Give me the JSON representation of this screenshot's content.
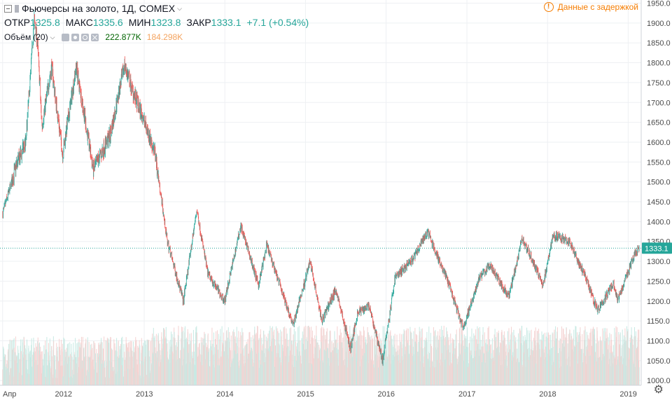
{
  "header": {
    "symbol_title": "Фьючерсы на золото, 1Д, COMEX",
    "ohlc": {
      "open_label": "ОТКР",
      "open_value": "1325.8",
      "high_label": "МАКС",
      "high_value": "1335.6",
      "low_label": "МИН",
      "low_value": "1323.8",
      "close_label": "ЗАКР",
      "close_value": "1333.1",
      "change": "+7.1 (+0.54%)"
    },
    "volume": {
      "name": "Объём",
      "period": "(20)",
      "value1": "222.877K",
      "value2": "184.298K"
    },
    "delay_notice": "Данные с задержкой"
  },
  "colors": {
    "up": "#26a69a",
    "down": "#ef5350",
    "price_line": "#26a69a",
    "volume_up": "#c7e9e3",
    "volume_down": "#f4d2d1",
    "vol_value1": "#006400",
    "vol_value2": "#f4a460",
    "warning": "#f57c00"
  },
  "chart_data": {
    "type": "candlestick",
    "title": "Фьючерсы на золото, 1Д, COMEX",
    "x_ticks": [
      "Апр",
      "2012",
      "2013",
      "2014",
      "2015",
      "2016",
      "2017",
      "2018",
      "2019"
    ],
    "y_ticks": [
      1000,
      1050,
      1100,
      1150,
      1200,
      1250,
      1300,
      1350,
      1400,
      1450,
      1500,
      1550,
      1600,
      1650,
      1700,
      1750,
      1800,
      1850,
      1900,
      1950
    ],
    "ylim": [
      995,
      1965
    ],
    "last_price": 1333.1,
    "last_price_label": "1333.1",
    "series": [
      {
        "name": "price",
        "x": [
          "2011-04-01",
          "2011-06-01",
          "2011-07-15",
          "2011-08-22",
          "2011-09-06",
          "2011-09-26",
          "2011-11-08",
          "2011-12-29",
          "2012-02-28",
          "2012-05-16",
          "2012-08-01",
          "2012-10-04",
          "2012-11-15",
          "2012-12-28",
          "2013-02-20",
          "2013-04-15",
          "2013-06-27",
          "2013-08-27",
          "2013-10-15",
          "2013-12-31",
          "2014-03-14",
          "2014-06-02",
          "2014-07-10",
          "2014-11-06",
          "2015-01-22",
          "2015-03-17",
          "2015-05-18",
          "2015-07-24",
          "2015-08-24",
          "2015-10-14",
          "2015-12-17",
          "2016-02-11",
          "2016-05-02",
          "2016-07-06",
          "2016-10-06",
          "2016-12-15",
          "2017-02-27",
          "2017-04-17",
          "2017-07-10",
          "2017-09-08",
          "2017-12-12",
          "2018-01-25",
          "2018-04-11",
          "2018-06-29",
          "2018-08-16",
          "2018-10-26",
          "2018-11-13",
          "2019-01-31",
          "2019-02-20"
        ],
        "y": [
          1420,
          1540,
          1600,
          1910,
          1850,
          1640,
          1790,
          1570,
          1790,
          1530,
          1620,
          1795,
          1720,
          1660,
          1570,
          1350,
          1200,
          1430,
          1270,
          1200,
          1390,
          1240,
          1340,
          1140,
          1300,
          1150,
          1230,
          1080,
          1170,
          1190,
          1050,
          1260,
          1305,
          1375,
          1250,
          1130,
          1260,
          1290,
          1210,
          1360,
          1240,
          1365,
          1350,
          1250,
          1175,
          1245,
          1200,
          1320,
          1333.1
        ]
      }
    ],
    "volume_label": "Объём (20)"
  }
}
